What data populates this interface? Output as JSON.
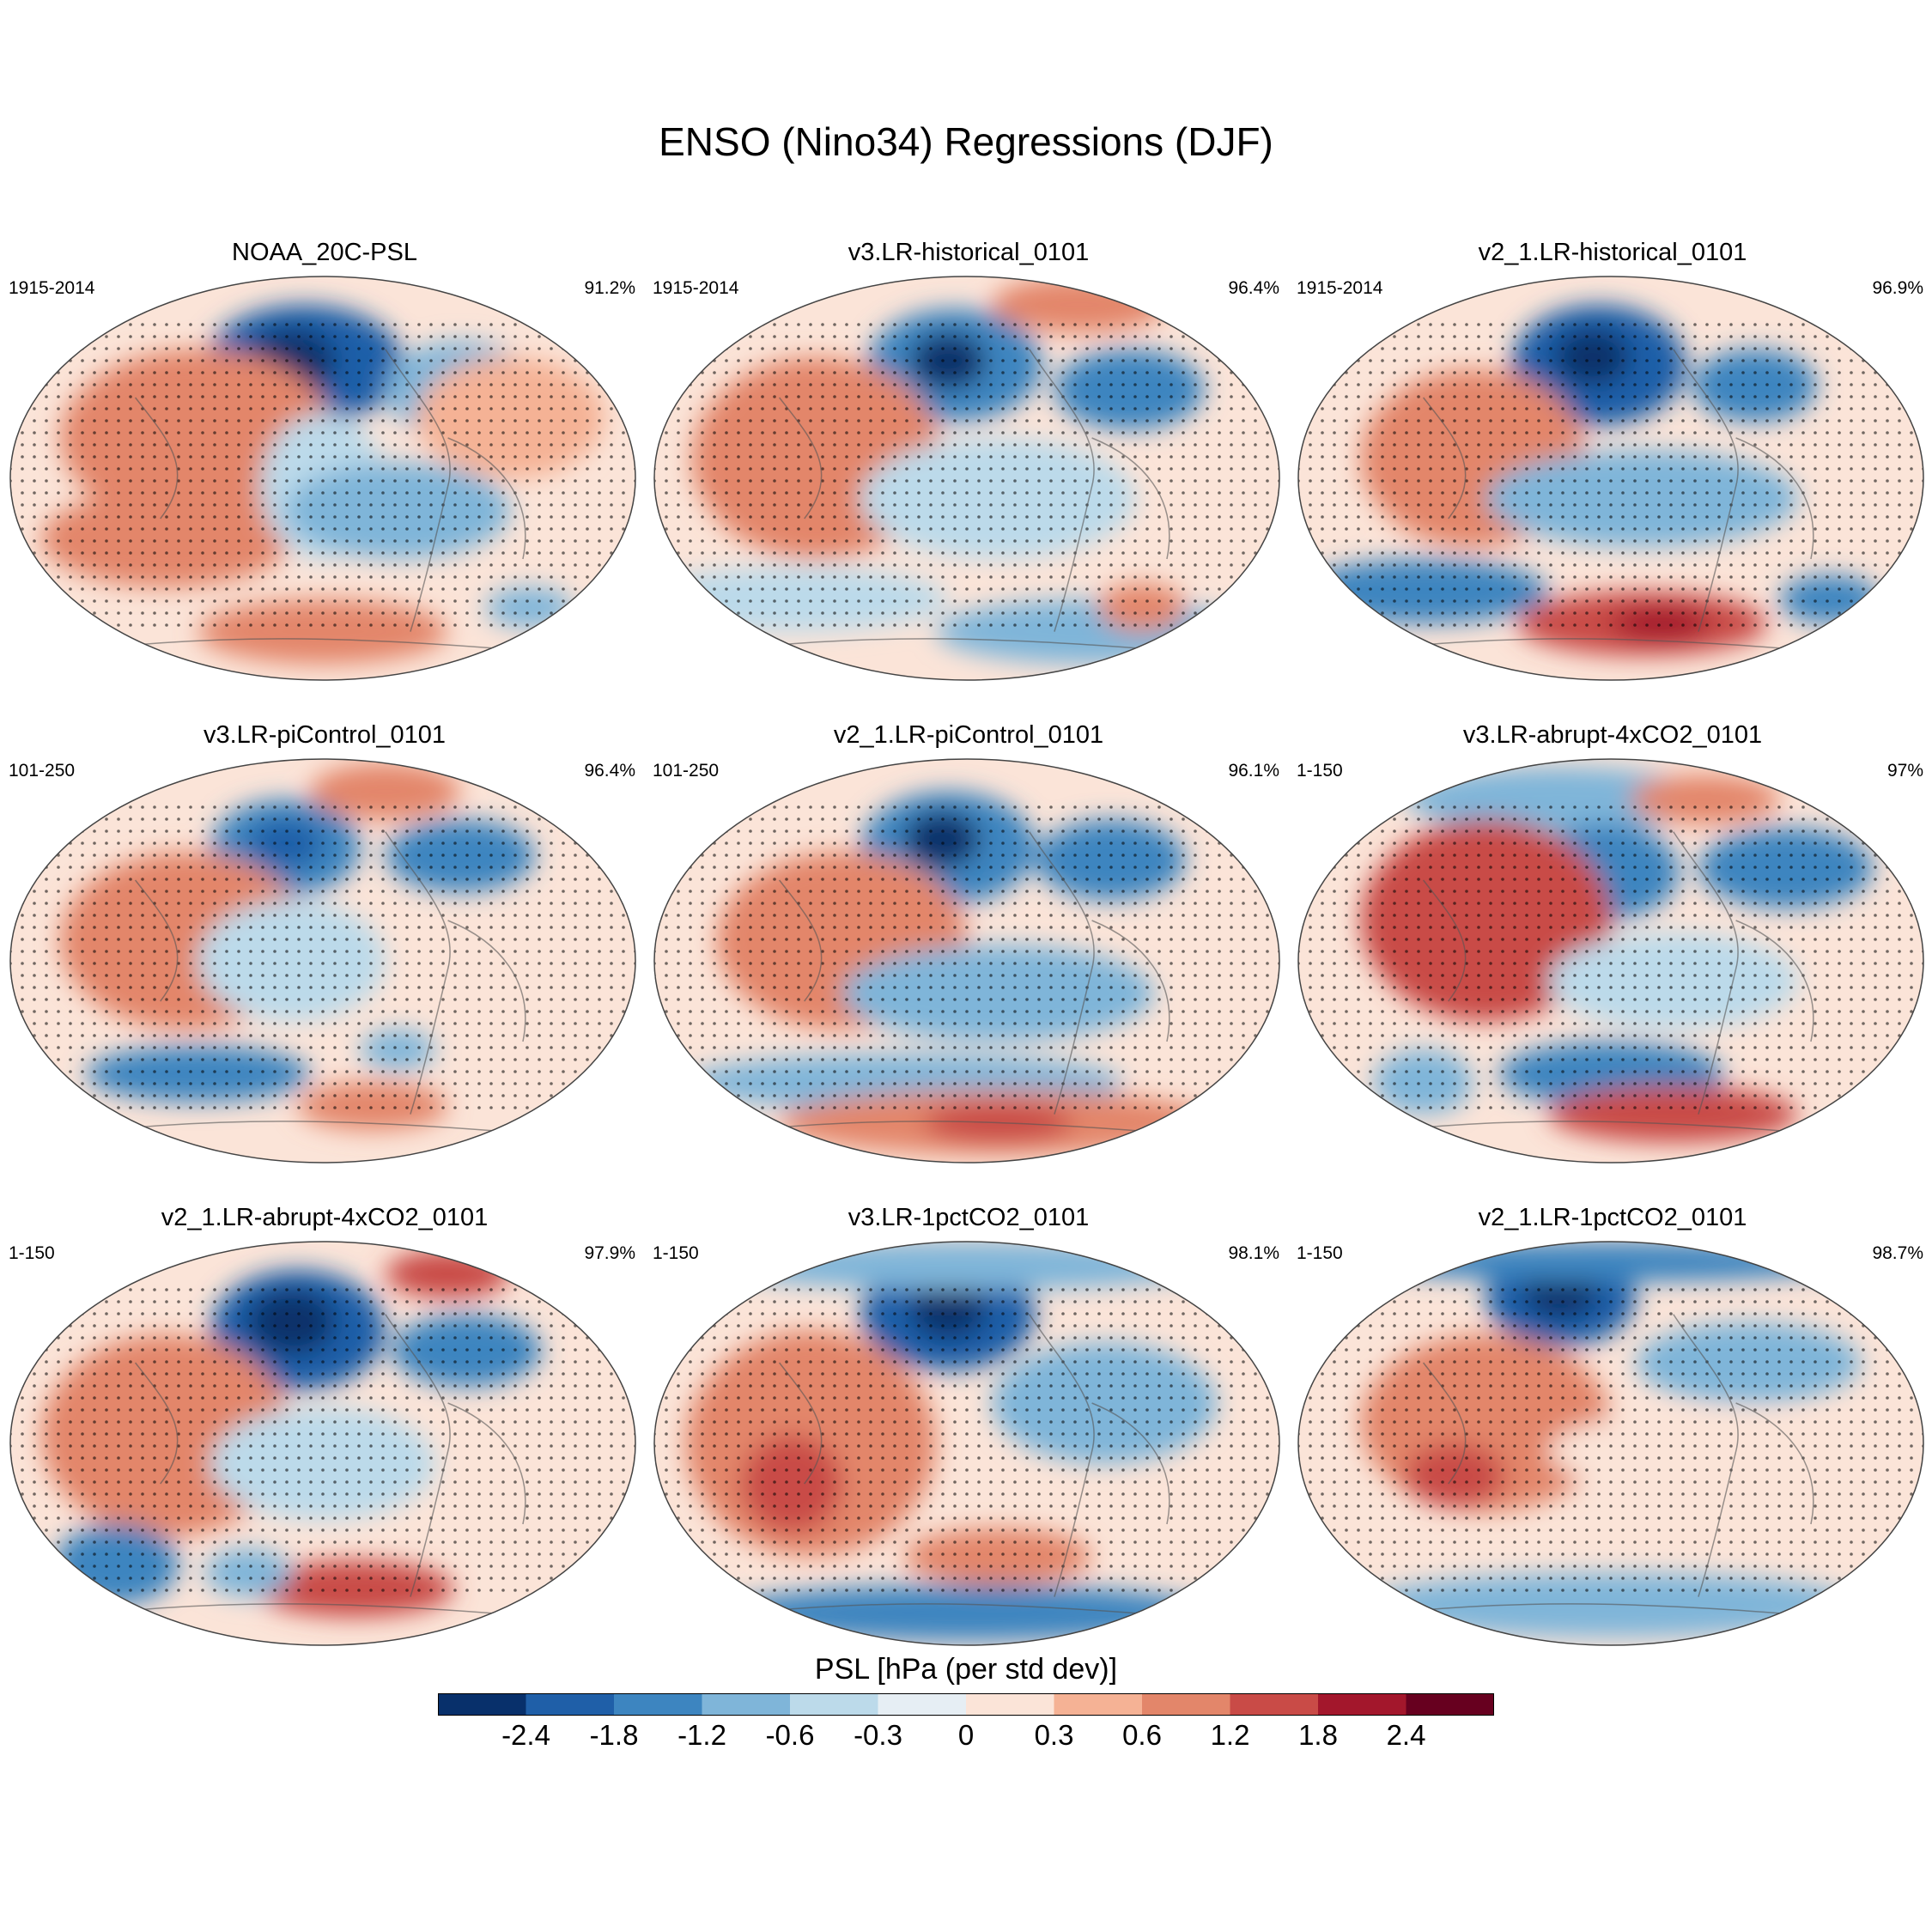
{
  "title": "ENSO (Nino34) Regressions (DJF)",
  "chart_data": {
    "type": "contour-map",
    "title": "ENSO (Nino34) Regressions (DJF)",
    "variable": "PSL",
    "colorbar_label": "PSL [hPa (per std dev)]",
    "levels": [
      "-2.4",
      "-1.8",
      "-1.2",
      "-0.6",
      "-0.3",
      "0",
      "0.3",
      "0.6",
      "1.2",
      "1.8",
      "2.4"
    ],
    "colors": [
      "#08306b",
      "#1f5fa8",
      "#3d85c0",
      "#7fb5d9",
      "#bcdaea",
      "#e6eef4",
      "#fbe4d8",
      "#f5b295",
      "#e3866a",
      "#c94b47",
      "#a3172c",
      "#67001f"
    ],
    "panels": [
      {
        "name": "NOAA_20C-PSL",
        "period": "1915-2014",
        "pattern_corr": "91.2%"
      },
      {
        "name": "v3.LR-historical_0101",
        "period": "1915-2014",
        "pattern_corr": "96.4%"
      },
      {
        "name": "v2_1.LR-historical_0101",
        "period": "1915-2014",
        "pattern_corr": "96.9%"
      },
      {
        "name": "v3.LR-piControl_0101",
        "period": "101-250",
        "pattern_corr": "96.4%"
      },
      {
        "name": "v2_1.LR-piControl_0101",
        "period": "101-250",
        "pattern_corr": "96.1%"
      },
      {
        "name": "v3.LR-abrupt-4xCO2_0101",
        "period": "1-150",
        "pattern_corr": "97%"
      },
      {
        "name": "v2_1.LR-abrupt-4xCO2_0101",
        "period": "1-150",
        "pattern_corr": "97.9%"
      },
      {
        "name": "v3.LR-1pctCO2_0101",
        "period": "1-150",
        "pattern_corr": "98.1%"
      },
      {
        "name": "v2_1.LR-1pctCO2_0101",
        "period": "1-150",
        "pattern_corr": "98.7%"
      }
    ]
  }
}
